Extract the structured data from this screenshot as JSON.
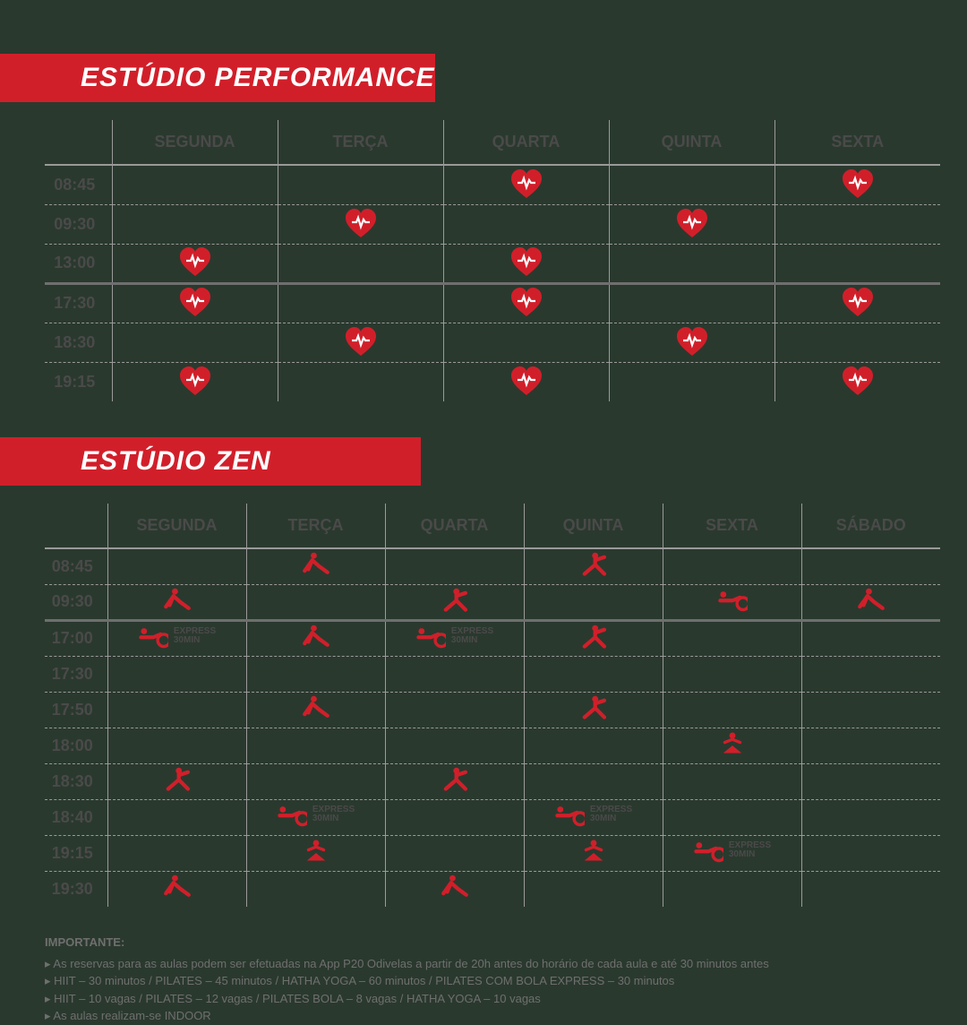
{
  "colors": {
    "accent": "#d11f2a",
    "bg": "#2a392e",
    "text": "#4a4a4a",
    "muted": "#6f6f6f",
    "grid": "#9a9a9a"
  },
  "express_label_top": "EXPRESS",
  "express_label_bottom": "30MIN",
  "performance": {
    "title": "ESTÚDIO PERFORMANCE",
    "days": [
      "SEGUNDA",
      "TERÇA",
      "QUARTA",
      "QUINTA",
      "SEXTA"
    ],
    "rows": [
      {
        "time": "08:45",
        "sep": "none",
        "cells": [
          "",
          "",
          "heart",
          "",
          "heart"
        ]
      },
      {
        "time": "09:30",
        "sep": "dashed",
        "cells": [
          "",
          "heart",
          "",
          "heart",
          ""
        ]
      },
      {
        "time": "13:00",
        "sep": "dashed",
        "cells": [
          "heart",
          "",
          "heart",
          "",
          ""
        ]
      },
      {
        "time": "17:30",
        "sep": "thick",
        "cells": [
          "heart",
          "",
          "heart",
          "",
          "heart"
        ]
      },
      {
        "time": "18:30",
        "sep": "dashed",
        "cells": [
          "",
          "heart",
          "",
          "heart",
          ""
        ]
      },
      {
        "time": "19:15",
        "sep": "dashed",
        "cells": [
          "heart",
          "",
          "heart",
          "",
          "heart"
        ]
      }
    ]
  },
  "zen": {
    "title": "ESTÚDIO ZEN",
    "days": [
      "SEGUNDA",
      "TERÇA",
      "QUARTA",
      "QUINTA",
      "SEXTA",
      "SÁBADO"
    ],
    "rows": [
      {
        "time": "08:45",
        "sep": "none",
        "cells": [
          "",
          "pilates",
          "",
          "stretch",
          "",
          ""
        ]
      },
      {
        "time": "09:30",
        "sep": "dashed",
        "cells": [
          "pilates",
          "",
          "stretch",
          "",
          "ball",
          "pilates"
        ]
      },
      {
        "time": "17:00",
        "sep": "thick",
        "cells": [
          "ball_express",
          "pilates",
          "ball_express",
          "stretch",
          "",
          ""
        ]
      },
      {
        "time": "17:30",
        "sep": "dashed",
        "cells": [
          "",
          "",
          "",
          "",
          "",
          ""
        ]
      },
      {
        "time": "17:50",
        "sep": "dashed",
        "cells": [
          "",
          "pilates",
          "",
          "stretch",
          "",
          ""
        ]
      },
      {
        "time": "18:00",
        "sep": "dashed",
        "cells": [
          "",
          "",
          "",
          "",
          "yoga",
          ""
        ]
      },
      {
        "time": "18:30",
        "sep": "dashed",
        "cells": [
          "stretch",
          "",
          "stretch",
          "",
          "",
          ""
        ]
      },
      {
        "time": "18:40",
        "sep": "dashed",
        "cells": [
          "",
          "ball_express",
          "",
          "ball_express",
          "",
          ""
        ]
      },
      {
        "time": "19:15",
        "sep": "dashed",
        "cells": [
          "",
          "yoga",
          "",
          "yoga",
          "ball_express",
          ""
        ]
      },
      {
        "time": "19:30",
        "sep": "dashed",
        "cells": [
          "pilates",
          "",
          "pilates",
          "",
          "",
          ""
        ]
      }
    ]
  },
  "footer": {
    "heading": "IMPORTANTE:",
    "lines": [
      "As reservas para as aulas podem ser efetuadas na App P20 Odivelas a partir de 20h antes do horário de cada aula e até 30 minutos antes",
      "HIIT – 30 minutos / PILATES – 45 minutos / HATHA YOGA – 60 minutos / PILATES COM BOLA EXPRESS – 30 minutos",
      "HIIT – 10 vagas / PILATES – 12 vagas / PILATES BOLA – 8 vagas / HATHA YOGA – 10 vagas",
      "As aulas realizam-se INDOOR"
    ]
  }
}
